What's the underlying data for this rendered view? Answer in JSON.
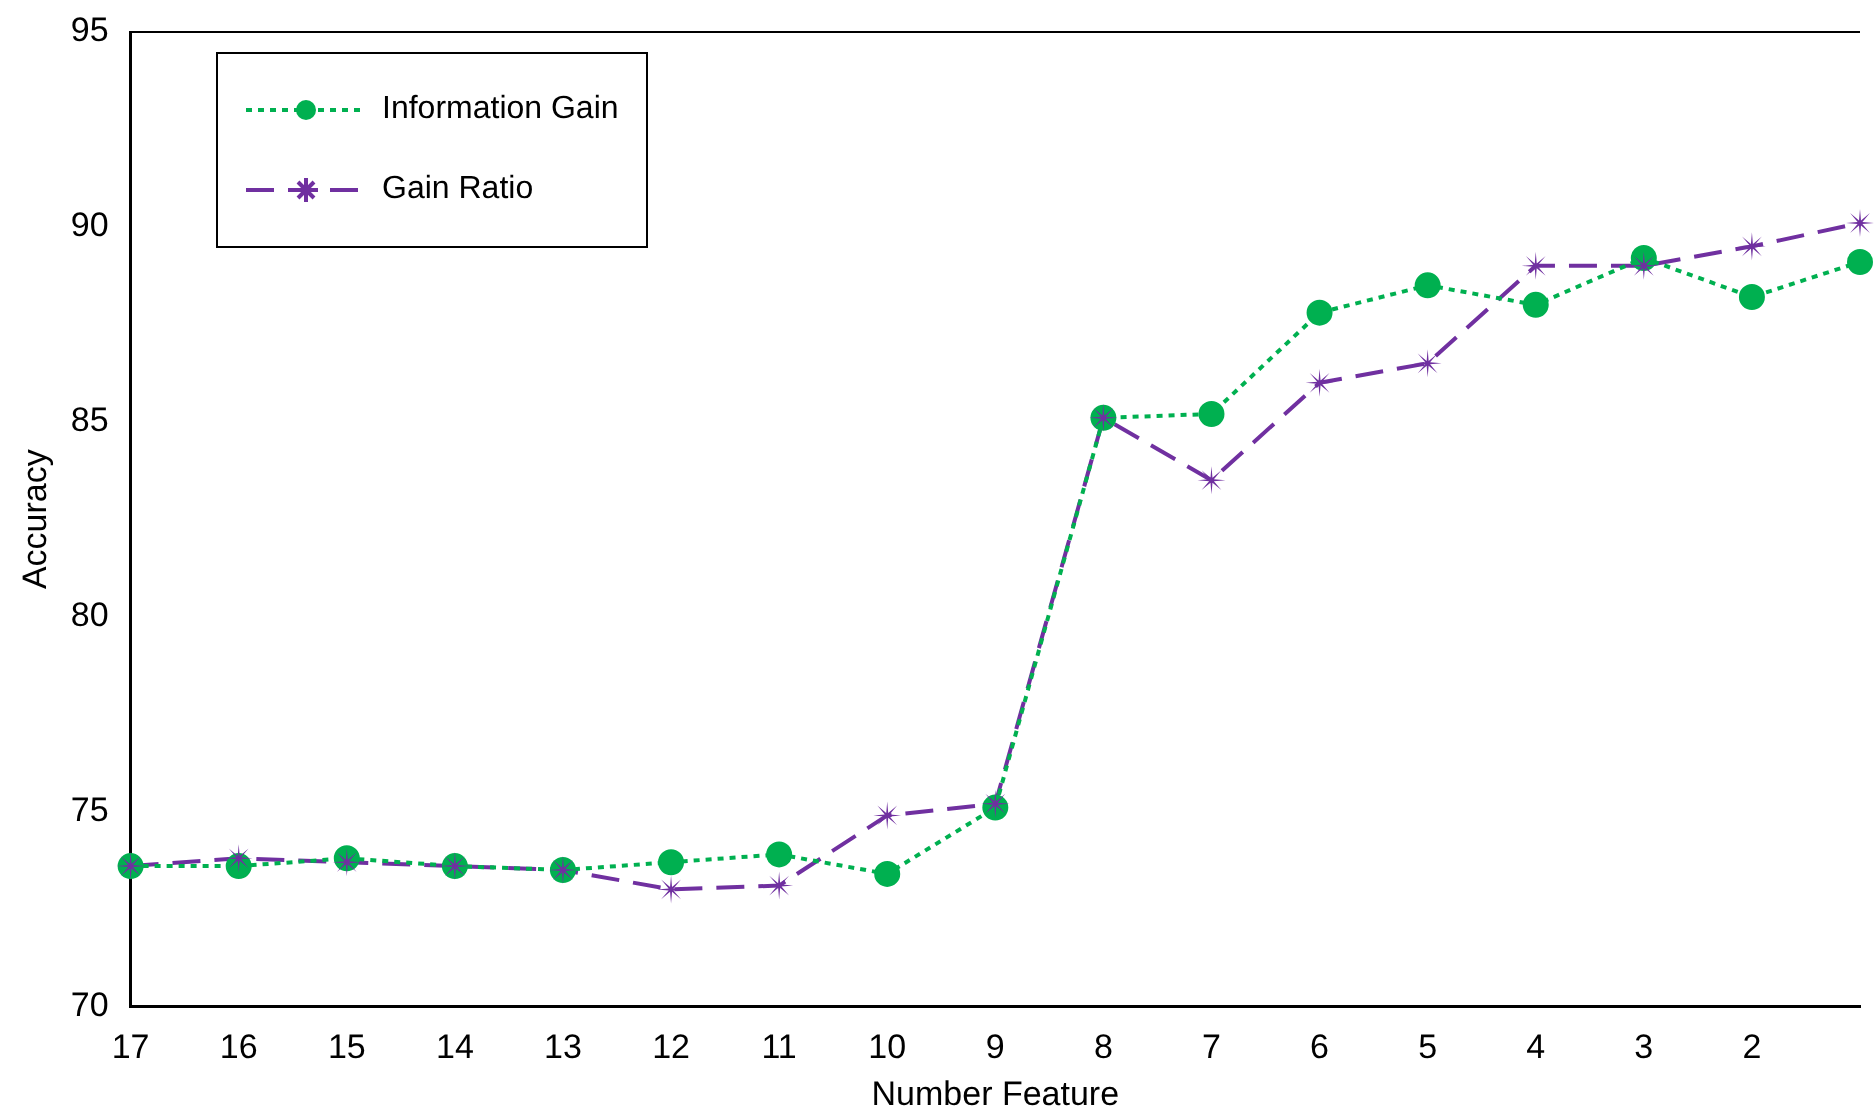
{
  "chart_data": {
    "type": "line",
    "xlabel": "Number Feature",
    "ylabel": "Accuracy",
    "categories": [
      "17",
      "16",
      "15",
      "14",
      "13",
      "12",
      "11",
      "10",
      "9",
      "8",
      "7",
      "6",
      "5",
      "4",
      "3",
      "2",
      null
    ],
    "ylim": [
      70,
      95
    ],
    "yticks": [
      70,
      75,
      80,
      85,
      90,
      95
    ],
    "grid": false,
    "legend": "top left",
    "series": [
      {
        "name": "Information Gain",
        "color": "#00b050",
        "marker": "circle",
        "line_style": "dotted",
        "values": [
          73.6,
          73.6,
          73.8,
          73.6,
          73.5,
          73.7,
          73.9,
          73.4,
          75.1,
          85.1,
          85.2,
          87.8,
          88.5,
          88.0,
          89.2,
          88.2,
          89.1
        ]
      },
      {
        "name": "Gain Ratio",
        "color": "#7030a0",
        "marker": "star",
        "line_style": "dashed",
        "values": [
          73.6,
          73.8,
          73.7,
          73.6,
          73.5,
          73.0,
          73.1,
          74.9,
          75.2,
          85.1,
          83.5,
          86.0,
          86.5,
          89.0,
          89.0,
          89.5,
          90.1
        ]
      }
    ]
  }
}
